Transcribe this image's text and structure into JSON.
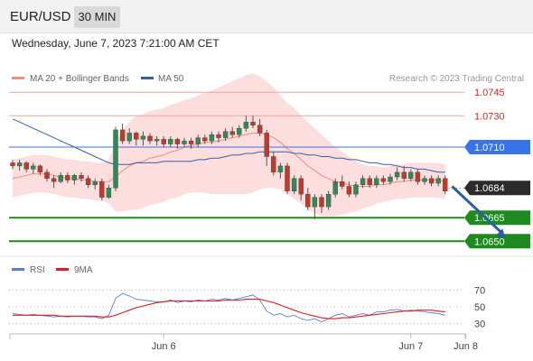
{
  "header": {
    "symbol": "EUR/USD",
    "timeframe": "30 MIN",
    "datetime": "Wednesday, June 7, 2023 7:21:00 AM CET"
  },
  "legend": {
    "ma20_label": "MA 20 + Bollinger Bands",
    "ma20_color": "#f28b82",
    "ma50_label": "MA 50",
    "ma50_color": "#3a5fa0",
    "source": "Research © 2023 Trading Central"
  },
  "rsi_legend": {
    "rsi_label": "RSI",
    "rsi_color": "#5b7fd6",
    "ma_label": "9MA",
    "ma_color": "#e01c1c"
  },
  "chart_data": [
    {
      "type": "candlestick",
      "title": "EUR/USD 30 MIN",
      "ylim": [
        1.0645,
        1.0748
      ],
      "x_labels": [
        {
          "label": "Jun 6",
          "bar": 22
        },
        {
          "label": "Jun 7",
          "bar": 58
        },
        {
          "label": "Jun 8",
          "bar": 66
        }
      ],
      "horizontal_levels": [
        {
          "value": 1.0745,
          "label": "1.0745",
          "color": "#f4a09a",
          "style": "resistance"
        },
        {
          "value": 1.073,
          "label": "1.0730",
          "color": "#f4a09a",
          "style": "resistance"
        },
        {
          "value": 1.071,
          "label": "1.0710",
          "color": "#3a73e8",
          "style": "pivot"
        },
        {
          "value": 1.0684,
          "label": "1.0684",
          "color": "#333333",
          "style": "last"
        },
        {
          "value": 1.0665,
          "label": "1.0665",
          "color": "#1f8a1f",
          "style": "support"
        },
        {
          "value": 1.065,
          "label": "1.0650",
          "color": "#1f8a1f",
          "style": "support"
        }
      ],
      "projection": {
        "from_bar": 64,
        "from": 1.0685,
        "to_bar": 72,
        "to": 1.0652,
        "color": "#2b5fa6"
      },
      "candles": [
        [
          1.07,
          1.0698,
          1.0702,
          1.0696
        ],
        [
          1.0698,
          1.07,
          1.0702,
          1.0695
        ],
        [
          1.07,
          1.0696,
          1.0701,
          1.0694
        ],
        [
          1.0696,
          1.0698,
          1.07,
          1.0693
        ],
        [
          1.0698,
          1.0694,
          1.0699,
          1.0692
        ],
        [
          1.0694,
          1.069,
          1.0696,
          1.0688
        ],
        [
          1.069,
          1.0688,
          1.0692,
          1.0684
        ],
        [
          1.0688,
          1.0692,
          1.0694,
          1.0687
        ],
        [
          1.0692,
          1.0689,
          1.0694,
          1.0687
        ],
        [
          1.0689,
          1.0692,
          1.0693,
          1.0686
        ],
        [
          1.0692,
          1.069,
          1.0694,
          1.0688
        ],
        [
          1.069,
          1.0686,
          1.0692,
          1.0684
        ],
        [
          1.0686,
          1.0688,
          1.069,
          1.0683
        ],
        [
          1.0688,
          1.0678,
          1.069,
          1.0676
        ],
        [
          1.0678,
          1.0684,
          1.0686,
          1.0677
        ],
        [
          1.0684,
          1.0721,
          1.0723,
          1.0682
        ],
        [
          1.0721,
          1.0714,
          1.0725,
          1.0712
        ],
        [
          1.0714,
          1.0719,
          1.0722,
          1.0712
        ],
        [
          1.0719,
          1.0715,
          1.072,
          1.0711
        ],
        [
          1.0715,
          1.0717,
          1.072,
          1.0711
        ],
        [
          1.0717,
          1.0714,
          1.0719,
          1.0712
        ],
        [
          1.0714,
          1.0715,
          1.0717,
          1.0711
        ],
        [
          1.0715,
          1.0712,
          1.0717,
          1.071
        ],
        [
          1.0712,
          1.0715,
          1.0717,
          1.071
        ],
        [
          1.0715,
          1.0712,
          1.0716,
          1.0709
        ],
        [
          1.0712,
          1.0714,
          1.0716,
          1.071
        ],
        [
          1.0714,
          1.0712,
          1.0716,
          1.0709
        ],
        [
          1.0712,
          1.0716,
          1.0718,
          1.071
        ],
        [
          1.0716,
          1.0714,
          1.0718,
          1.0712
        ],
        [
          1.0714,
          1.0718,
          1.072,
          1.0712
        ],
        [
          1.0718,
          1.0716,
          1.072,
          1.0713
        ],
        [
          1.0716,
          1.072,
          1.0722,
          1.0714
        ],
        [
          1.072,
          1.0718,
          1.0723,
          1.0716
        ],
        [
          1.0718,
          1.0722,
          1.0724,
          1.0716
        ],
        [
          1.0722,
          1.0726,
          1.073,
          1.072
        ],
        [
          1.0726,
          1.0724,
          1.073,
          1.0722
        ],
        [
          1.0724,
          1.0719,
          1.0728,
          1.0717
        ],
        [
          1.0719,
          1.0704,
          1.0721,
          1.0698
        ],
        [
          1.0704,
          1.0694,
          1.0707,
          1.0692
        ],
        [
          1.0694,
          1.0698,
          1.07,
          1.069
        ],
        [
          1.0698,
          1.0682,
          1.07,
          1.068
        ],
        [
          1.0682,
          1.069,
          1.0692,
          1.068
        ],
        [
          1.069,
          1.068,
          1.0692,
          1.0676
        ],
        [
          1.068,
          1.0672,
          1.0684,
          1.067
        ],
        [
          1.0672,
          1.0678,
          1.068,
          1.0664
        ],
        [
          1.0678,
          1.0672,
          1.068,
          1.0668
        ],
        [
          1.0672,
          1.068,
          1.0682,
          1.067
        ],
        [
          1.068,
          1.0688,
          1.069,
          1.0678
        ],
        [
          1.0688,
          1.0685,
          1.0692,
          1.0683
        ],
        [
          1.0685,
          1.068,
          1.0688,
          1.0678
        ],
        [
          1.068,
          1.0686,
          1.0688,
          1.0678
        ],
        [
          1.0686,
          1.069,
          1.0692,
          1.0684
        ],
        [
          1.069,
          1.0686,
          1.0692,
          1.0684
        ],
        [
          1.0686,
          1.069,
          1.0692,
          1.0684
        ],
        [
          1.069,
          1.0688,
          1.0692,
          1.0686
        ],
        [
          1.0688,
          1.0691,
          1.0693,
          1.0686
        ],
        [
          1.0691,
          1.0694,
          1.0697,
          1.0689
        ],
        [
          1.0694,
          1.069,
          1.0698,
          1.0688
        ],
        [
          1.069,
          1.0694,
          1.0696,
          1.0688
        ],
        [
          1.0694,
          1.0688,
          1.0696,
          1.0686
        ],
        [
          1.0688,
          1.069,
          1.0692,
          1.0686
        ],
        [
          1.069,
          1.0687,
          1.0692,
          1.0685
        ],
        [
          1.0687,
          1.069,
          1.0692,
          1.0685
        ],
        [
          1.069,
          1.0682,
          1.0692,
          1.068
        ]
      ],
      "ma20": [
        1.069,
        1.0691,
        1.0692,
        1.0693,
        1.0693,
        1.0693,
        1.0692,
        1.0691,
        1.069,
        1.069,
        1.0689,
        1.0689,
        1.0688,
        1.0688,
        1.0688,
        1.0691,
        1.0695,
        1.0698,
        1.07,
        1.0701,
        1.0703,
        1.0704,
        1.0705,
        1.0707,
        1.0708,
        1.071,
        1.0711,
        1.0712,
        1.0713,
        1.0713,
        1.0714,
        1.0715,
        1.0716,
        1.0717,
        1.0718,
        1.0719,
        1.0719,
        1.0718,
        1.0716,
        1.0713,
        1.0709,
        1.0706,
        1.0702,
        1.0698,
        1.0695,
        1.0692,
        1.069,
        1.0688,
        1.0687,
        1.0686,
        1.0685,
        1.0685,
        1.0685,
        1.0686,
        1.0686,
        1.0687,
        1.0688,
        1.0688,
        1.0689,
        1.0689,
        1.0689,
        1.0689,
        1.0689,
        1.0688
      ],
      "ma50": [
        1.0728,
        1.0726,
        1.0724,
        1.0722,
        1.072,
        1.0718,
        1.0716,
        1.0714,
        1.0712,
        1.071,
        1.0708,
        1.0706,
        1.0704,
        1.0702,
        1.07,
        1.0699,
        1.0699,
        1.0699,
        1.07,
        1.07,
        1.07,
        1.07,
        1.0701,
        1.0701,
        1.0701,
        1.0701,
        1.0701,
        1.0702,
        1.0702,
        1.0703,
        1.0703,
        1.0704,
        1.0705,
        1.0705,
        1.0706,
        1.0706,
        1.0707,
        1.0707,
        1.0707,
        1.0707,
        1.0707,
        1.0706,
        1.0706,
        1.0705,
        1.0705,
        1.0704,
        1.0704,
        1.0703,
        1.0703,
        1.0702,
        1.0702,
        1.0701,
        1.07,
        1.07,
        1.0699,
        1.0699,
        1.0698,
        1.0697,
        1.0697,
        1.0696,
        1.0696,
        1.0695,
        1.0694,
        1.0694
      ],
      "bb_width": [
        0.0012,
        0.0012,
        0.0012,
        0.0012,
        0.0012,
        0.0012,
        0.0012,
        0.0012,
        0.0012,
        0.0012,
        0.0012,
        0.0012,
        0.0012,
        0.0012,
        0.0014,
        0.0022,
        0.0026,
        0.0028,
        0.003,
        0.003,
        0.003,
        0.003,
        0.003,
        0.003,
        0.003,
        0.003,
        0.003,
        0.0031,
        0.0032,
        0.0033,
        0.0034,
        0.0035,
        0.0036,
        0.0037,
        0.0038,
        0.0038,
        0.0036,
        0.0034,
        0.0032,
        0.003,
        0.0029,
        0.0029,
        0.0028,
        0.0028,
        0.0027,
        0.0026,
        0.0024,
        0.0022,
        0.002,
        0.0018,
        0.0016,
        0.0014,
        0.0013,
        0.0012,
        0.0011,
        0.0011,
        0.0011,
        0.0011,
        0.0011,
        0.0011,
        0.0011,
        0.0011,
        0.0011,
        0.0011
      ]
    },
    {
      "type": "line",
      "title": "RSI",
      "ylim": [
        20,
        80
      ],
      "y_ticks": [
        70,
        50,
        30
      ],
      "series": [
        {
          "name": "RSI",
          "color": "#5b7fd6",
          "values": [
            42,
            41,
            40,
            41,
            40,
            39,
            38,
            39,
            38,
            39,
            39,
            38,
            38,
            36,
            40,
            60,
            66,
            63,
            59,
            58,
            57,
            56,
            56,
            58,
            55,
            57,
            56,
            58,
            57,
            59,
            58,
            60,
            58,
            60,
            62,
            64,
            58,
            45,
            40,
            42,
            38,
            40,
            36,
            34,
            36,
            32,
            36,
            40,
            42,
            38,
            40,
            42,
            40,
            44,
            44,
            46,
            47,
            45,
            46,
            45,
            44,
            43,
            42,
            40
          ]
        },
        {
          "name": "9MA",
          "color": "#e01c1c",
          "values": [
            40,
            40,
            40,
            40,
            40,
            40,
            40,
            39,
            39,
            39,
            39,
            39,
            39,
            38,
            38,
            40,
            43,
            46,
            49,
            51,
            53,
            55,
            56,
            57,
            57,
            57,
            57,
            57,
            57,
            57,
            57,
            58,
            58,
            58,
            59,
            59,
            59,
            57,
            55,
            52,
            49,
            46,
            43,
            41,
            39,
            37,
            36,
            36,
            37,
            37,
            38,
            39,
            40,
            41,
            42,
            43,
            44,
            45,
            45,
            46,
            46,
            46,
            45,
            44
          ]
        }
      ]
    }
  ]
}
